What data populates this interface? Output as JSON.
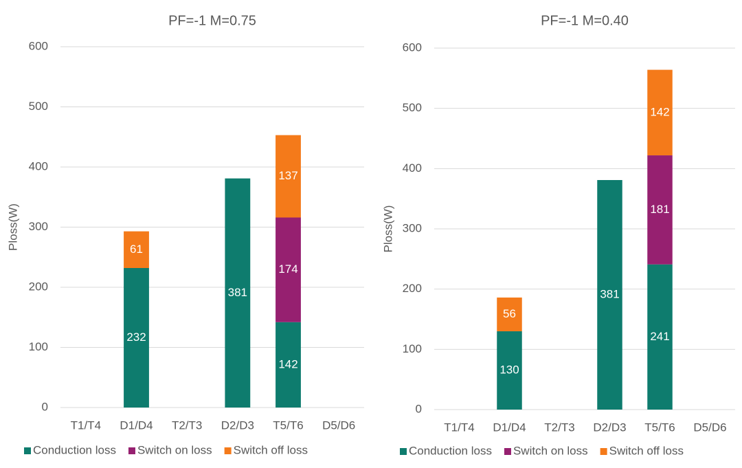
{
  "chart_data": [
    {
      "type": "bar",
      "stacked": true,
      "title": "PF=-1  M=0.75",
      "y_label": "Ploss(W)",
      "categories": [
        "T1/T4",
        "D1/D4",
        "T2/T3",
        "D2/D3",
        "T5/T6",
        "D5/D6"
      ],
      "series": [
        {
          "name": "Conduction loss",
          "color": "#0e7c6e",
          "values": [
            null,
            232,
            null,
            381,
            142,
            null
          ]
        },
        {
          "name": "Switch on loss",
          "color": "#962070",
          "values": [
            null,
            null,
            null,
            null,
            174,
            null
          ]
        },
        {
          "name": "Switch off loss",
          "color": "#f47a1a",
          "values": [
            null,
            61,
            null,
            null,
            137,
            null
          ]
        }
      ],
      "ylim": [
        0,
        600
      ],
      "yticks": [
        0,
        100,
        200,
        300,
        400,
        500,
        600
      ],
      "grid": true,
      "legend": "bottom"
    },
    {
      "type": "bar",
      "stacked": true,
      "title": "PF=-1  M=0.40",
      "y_label": "Ploss(W)",
      "categories": [
        "T1/T4",
        "D1/D4",
        "T2/T3",
        "D2/D3",
        "T5/T6",
        "D5/D6"
      ],
      "series": [
        {
          "name": "Conduction loss",
          "color": "#0e7c6e",
          "values": [
            null,
            130,
            null,
            381,
            241,
            null
          ]
        },
        {
          "name": "Switch on loss",
          "color": "#962070",
          "values": [
            null,
            null,
            null,
            null,
            181,
            null
          ]
        },
        {
          "name": "Switch off loss",
          "color": "#f47a1a",
          "values": [
            null,
            56,
            null,
            null,
            142,
            null
          ]
        }
      ],
      "ylim": [
        0,
        600
      ],
      "yticks": [
        0,
        100,
        200,
        300,
        400,
        500,
        600
      ],
      "grid": true,
      "legend": "bottom"
    }
  ]
}
